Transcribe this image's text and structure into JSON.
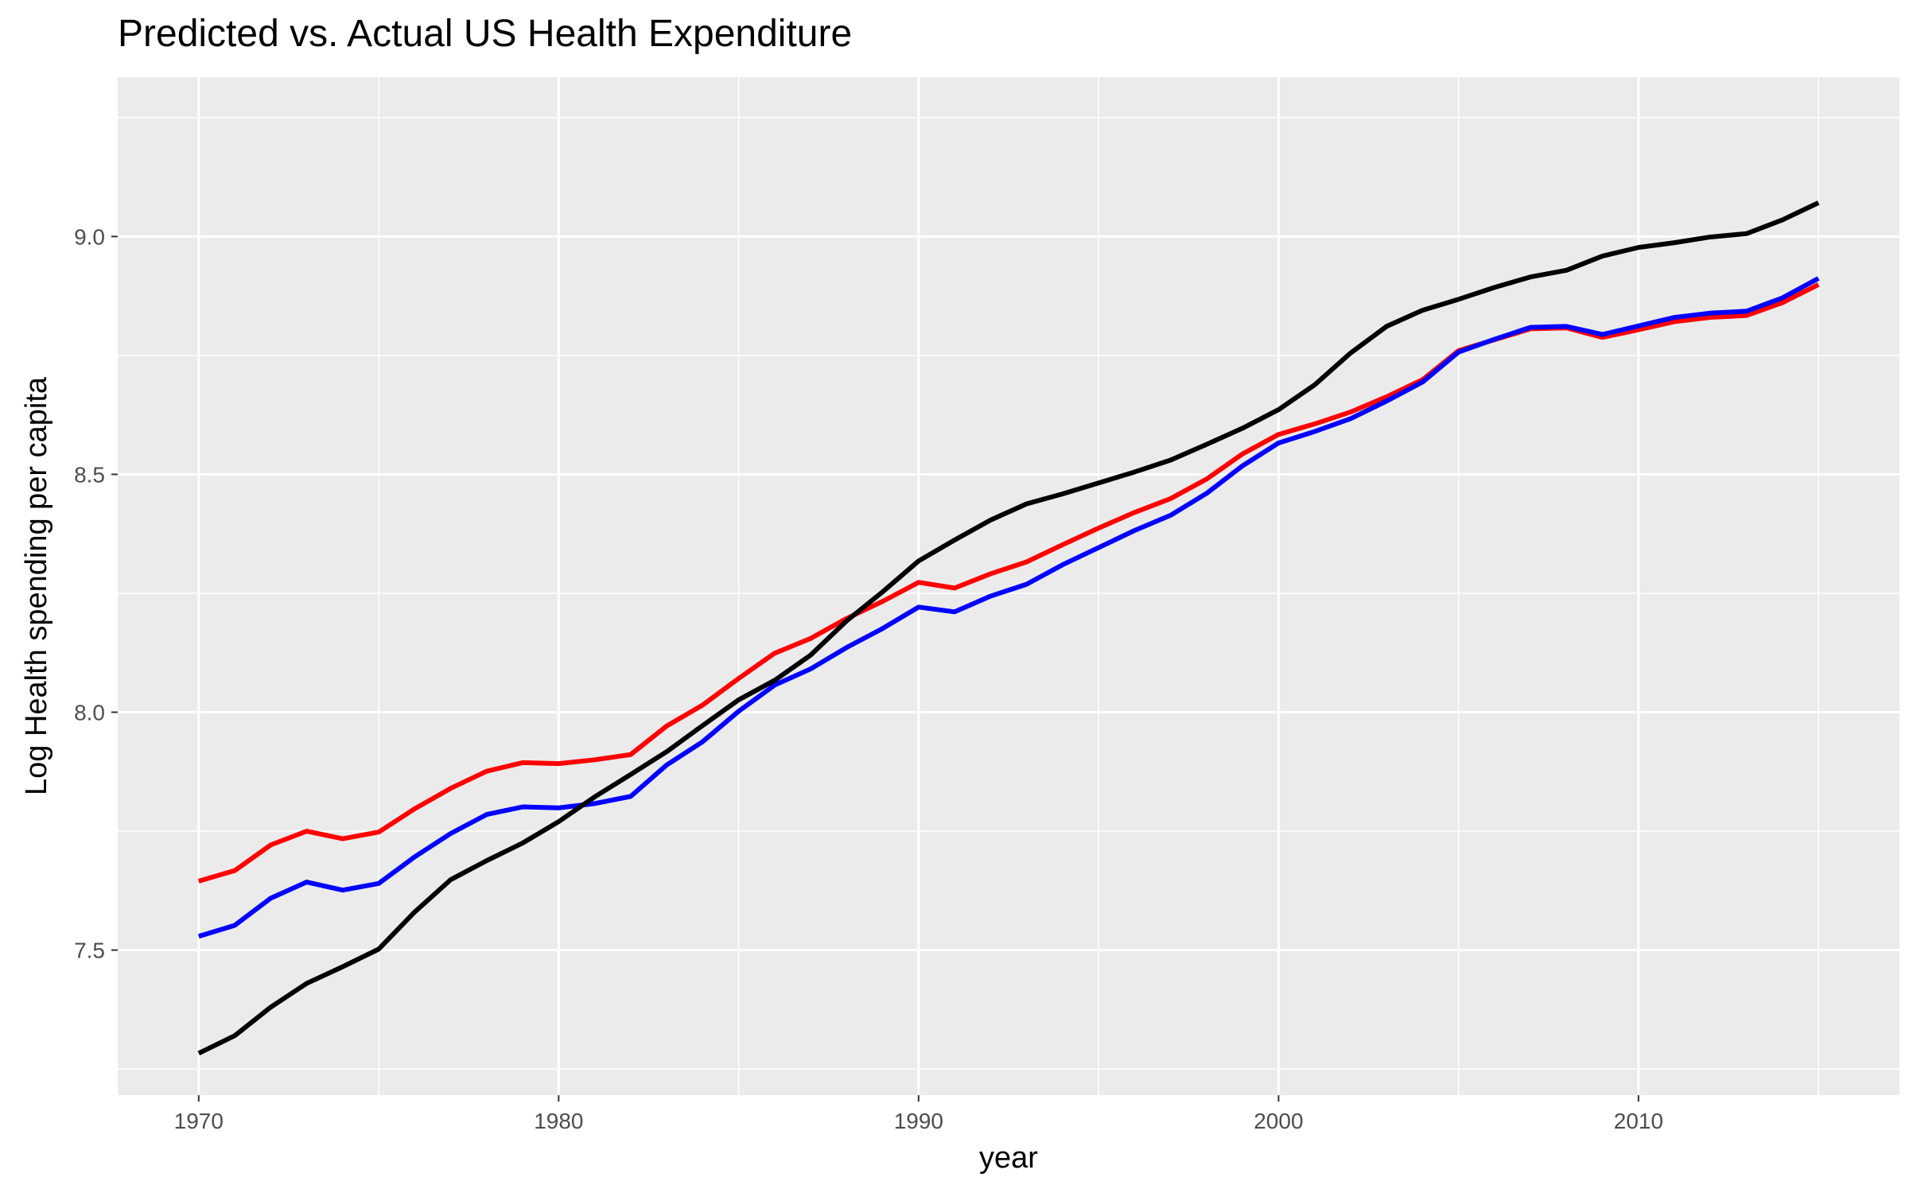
{
  "chart_data": {
    "type": "line",
    "title": "Predicted vs. Actual US Health Expenditure",
    "xlabel": "year",
    "ylabel": "Log Health spending per capita",
    "xlim": [
      1967.75,
      2017.25
    ],
    "ylim": [
      7.195,
      9.335
    ],
    "x_ticks": [
      1970,
      1980,
      1990,
      2000,
      2010
    ],
    "y_ticks": [
      7.5,
      8.0,
      8.5,
      9.0
    ],
    "x_tick_labels": [
      "1970",
      "1980",
      "1990",
      "2000",
      "2010"
    ],
    "y_tick_labels": [
      "7.5",
      "8.0",
      "8.5",
      "9.0"
    ],
    "grid": true,
    "legend": "none",
    "x": [
      1970,
      1971,
      1972,
      1973,
      1974,
      1975,
      1976,
      1977,
      1978,
      1979,
      1980,
      1981,
      1982,
      1983,
      1984,
      1985,
      1986,
      1987,
      1988,
      1989,
      1990,
      1991,
      1992,
      1993,
      1994,
      1995,
      1996,
      1997,
      1998,
      1999,
      2000,
      2001,
      2002,
      2003,
      2004,
      2005,
      2006,
      2007,
      2008,
      2009,
      2010,
      2011,
      2012,
      2013,
      2014,
      2015
    ],
    "series": [
      {
        "color": "#ff0000",
        "values": [
          7.645,
          7.667,
          7.721,
          7.75,
          7.734,
          7.748,
          7.797,
          7.84,
          7.876,
          7.894,
          7.892,
          7.9,
          7.911,
          7.971,
          8.015,
          8.071,
          8.124,
          8.155,
          8.197,
          8.233,
          8.273,
          8.261,
          8.291,
          8.316,
          8.352,
          8.387,
          8.42,
          8.449,
          8.49,
          8.543,
          8.584,
          8.606,
          8.631,
          8.663,
          8.699,
          8.76,
          8.783,
          8.806,
          8.808,
          8.788,
          8.804,
          8.821,
          8.83,
          8.834,
          8.861,
          8.899
        ]
      },
      {
        "color": "#0000ff",
        "values": [
          7.529,
          7.552,
          7.609,
          7.643,
          7.626,
          7.64,
          7.696,
          7.745,
          7.785,
          7.801,
          7.799,
          7.808,
          7.823,
          7.889,
          7.938,
          8.002,
          8.057,
          8.091,
          8.136,
          8.176,
          8.221,
          8.211,
          8.244,
          8.269,
          8.31,
          8.346,
          8.382,
          8.414,
          8.46,
          8.518,
          8.566,
          8.59,
          8.617,
          8.654,
          8.694,
          8.757,
          8.784,
          8.809,
          8.811,
          8.794,
          8.812,
          8.83,
          8.839,
          8.843,
          8.871,
          8.912
        ]
      },
      {
        "color": "#000000",
        "values": [
          7.283,
          7.32,
          7.38,
          7.43,
          7.465,
          7.502,
          7.58,
          7.648,
          7.688,
          7.725,
          7.77,
          7.822,
          7.869,
          7.917,
          7.972,
          8.026,
          8.067,
          8.12,
          8.192,
          8.253,
          8.318,
          8.362,
          8.404,
          8.438,
          8.459,
          8.482,
          8.505,
          8.53,
          8.563,
          8.597,
          8.636,
          8.688,
          8.755,
          8.811,
          8.845,
          8.868,
          8.893,
          8.915,
          8.929,
          8.959,
          8.977,
          8.987,
          8.999,
          9.006,
          9.035,
          9.071
        ]
      }
    ]
  }
}
